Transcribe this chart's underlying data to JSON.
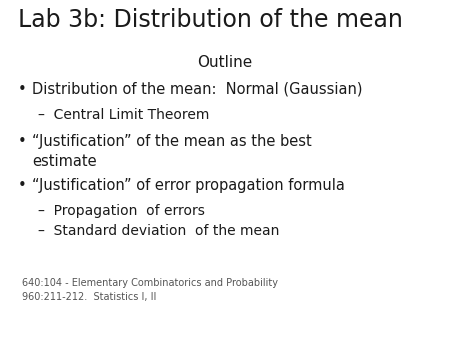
{
  "title": "Lab 3b: Distribution of the mean",
  "subtitle": "Outline",
  "footer_line1": "640:104 - Elementary Combinatorics and Probability",
  "footer_line2": "960:211-212.  Statistics I, II",
  "bg_color": "#ffffff",
  "title_fontsize": 17,
  "subtitle_fontsize": 11,
  "bullet_fontsize": 10.5,
  "sub_bullet_fontsize": 10,
  "footer_fontsize": 7,
  "text_color": "#1a1a1a",
  "footer_color": "#555555"
}
